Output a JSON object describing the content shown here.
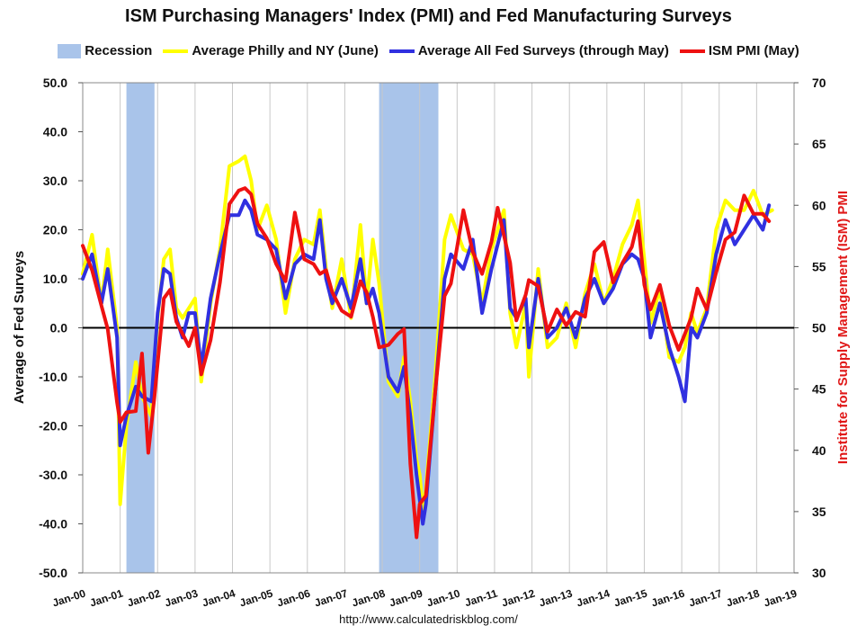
{
  "chart_data": {
    "type": "line",
    "title": "ISM Purchasing Managers' Index (PMI) and Fed Manufacturing Surveys",
    "ylabel_left": "Average of Fed Surveys",
    "ylabel_right": "Institute for Supply Management (ISM) PMI",
    "ylim_left": [
      -50,
      50
    ],
    "ylim_right": [
      30,
      70
    ],
    "yticks_left": [
      "50.0",
      "40.0",
      "30.0",
      "20.0",
      "10.0",
      "0.0",
      "-10.0",
      "-20.0",
      "-30.0",
      "-40.0",
      "-50.0"
    ],
    "yticks_right": [
      "70",
      "65",
      "60",
      "55",
      "50",
      "45",
      "40",
      "35",
      "30"
    ],
    "xlim": [
      "Jan-00",
      "Jan-19"
    ],
    "xticks": [
      "Jan-00",
      "Jan-01",
      "Jan-02",
      "Jan-03",
      "Jan-04",
      "Jan-05",
      "Jan-06",
      "Jan-07",
      "Jan-08",
      "Jan-09",
      "Jan-10",
      "Jan-11",
      "Jan-12",
      "Jan-13",
      "Jan-14",
      "Jan-15",
      "Jan-16",
      "Jan-17",
      "Jan-18",
      "Jan-19"
    ],
    "legend_position": "top",
    "grid": "vertical",
    "recessions": [
      {
        "start": "2001-03",
        "end": "2001-11"
      },
      {
        "start": "2007-12",
        "end": "2009-06"
      }
    ],
    "series": [
      {
        "name": "Average Philly and NY (June)",
        "axis": "left",
        "color": "#ffff00",
        "points": [
          [
            "2000-01",
            11
          ],
          [
            "2000-04",
            19
          ],
          [
            "2000-07",
            5
          ],
          [
            "2000-09",
            16
          ],
          [
            "2000-12",
            0
          ],
          [
            "2001-01",
            -36
          ],
          [
            "2001-03",
            -20
          ],
          [
            "2001-06",
            -7
          ],
          [
            "2001-08",
            -14
          ],
          [
            "2001-11",
            -18
          ],
          [
            "2002-01",
            2
          ],
          [
            "2002-03",
            14
          ],
          [
            "2002-05",
            16
          ],
          [
            "2002-07",
            4
          ],
          [
            "2002-09",
            2
          ],
          [
            "2002-11",
            4
          ],
          [
            "2003-01",
            6
          ],
          [
            "2003-03",
            -11
          ],
          [
            "2003-06",
            5
          ],
          [
            "2003-09",
            16
          ],
          [
            "2003-12",
            33
          ],
          [
            "2004-03",
            34
          ],
          [
            "2004-05",
            35
          ],
          [
            "2004-07",
            30
          ],
          [
            "2004-09",
            20
          ],
          [
            "2004-12",
            25
          ],
          [
            "2005-03",
            18
          ],
          [
            "2005-06",
            3
          ],
          [
            "2005-09",
            14
          ],
          [
            "2005-12",
            18
          ],
          [
            "2006-03",
            17
          ],
          [
            "2006-05",
            24
          ],
          [
            "2006-07",
            12
          ],
          [
            "2006-09",
            4
          ],
          [
            "2006-12",
            14
          ],
          [
            "2007-03",
            2
          ],
          [
            "2007-06",
            21
          ],
          [
            "2007-08",
            5
          ],
          [
            "2007-10",
            18
          ],
          [
            "2007-12",
            9
          ],
          [
            "2008-03",
            -11
          ],
          [
            "2008-06",
            -14
          ],
          [
            "2008-08",
            -6
          ],
          [
            "2008-10",
            -15
          ],
          [
            "2008-12",
            -27
          ],
          [
            "2009-01",
            -30
          ],
          [
            "2009-02",
            -37
          ],
          [
            "2009-03",
            -33
          ],
          [
            "2009-06",
            -10
          ],
          [
            "2009-09",
            18
          ],
          [
            "2009-11",
            23
          ],
          [
            "2010-03",
            16
          ],
          [
            "2010-06",
            15
          ],
          [
            "2010-09",
            5
          ],
          [
            "2010-12",
            16
          ],
          [
            "2011-04",
            24
          ],
          [
            "2011-06",
            3
          ],
          [
            "2011-08",
            -4
          ],
          [
            "2011-11",
            5
          ],
          [
            "2011-12",
            -10
          ],
          [
            "2012-03",
            12
          ],
          [
            "2012-06",
            -4
          ],
          [
            "2012-09",
            -2
          ],
          [
            "2012-12",
            5
          ],
          [
            "2013-03",
            -4
          ],
          [
            "2013-06",
            7
          ],
          [
            "2013-09",
            13
          ],
          [
            "2013-12",
            5
          ],
          [
            "2014-03",
            10
          ],
          [
            "2014-06",
            17
          ],
          [
            "2014-09",
            21
          ],
          [
            "2014-11",
            26
          ],
          [
            "2015-01",
            14
          ],
          [
            "2015-03",
            1
          ],
          [
            "2015-06",
            8
          ],
          [
            "2015-09",
            -6
          ],
          [
            "2015-12",
            -7
          ],
          [
            "2016-02",
            -4
          ],
          [
            "2016-04",
            3
          ],
          [
            "2016-06",
            -1
          ],
          [
            "2016-09",
            4
          ],
          [
            "2016-12",
            20
          ],
          [
            "2017-03",
            26
          ],
          [
            "2017-06",
            24
          ],
          [
            "2017-09",
            24
          ],
          [
            "2017-12",
            28
          ],
          [
            "2018-03",
            23
          ],
          [
            "2018-06",
            24
          ]
        ]
      },
      {
        "name": "Average All Fed Surveys (through May)",
        "axis": "left",
        "color": "#3030e0",
        "points": [
          [
            "2000-01",
            10
          ],
          [
            "2000-04",
            15
          ],
          [
            "2000-07",
            5
          ],
          [
            "2000-09",
            12
          ],
          [
            "2000-12",
            -2
          ],
          [
            "2001-01",
            -24
          ],
          [
            "2001-03",
            -18
          ],
          [
            "2001-06",
            -12
          ],
          [
            "2001-08",
            -14
          ],
          [
            "2001-11",
            -15
          ],
          [
            "2002-01",
            3
          ],
          [
            "2002-03",
            12
          ],
          [
            "2002-05",
            11
          ],
          [
            "2002-07",
            2
          ],
          [
            "2002-09",
            -2
          ],
          [
            "2002-11",
            3
          ],
          [
            "2003-01",
            3
          ],
          [
            "2003-03",
            -8
          ],
          [
            "2003-06",
            6
          ],
          [
            "2003-09",
            15
          ],
          [
            "2003-12",
            23
          ],
          [
            "2004-03",
            23
          ],
          [
            "2004-05",
            26
          ],
          [
            "2004-07",
            24
          ],
          [
            "2004-09",
            19
          ],
          [
            "2004-12",
            18
          ],
          [
            "2005-03",
            16
          ],
          [
            "2005-06",
            6
          ],
          [
            "2005-09",
            13
          ],
          [
            "2005-12",
            15
          ],
          [
            "2006-03",
            14
          ],
          [
            "2006-05",
            22
          ],
          [
            "2006-07",
            10
          ],
          [
            "2006-09",
            5
          ],
          [
            "2006-12",
            10
          ],
          [
            "2007-03",
            4
          ],
          [
            "2007-06",
            14
          ],
          [
            "2007-08",
            5
          ],
          [
            "2007-10",
            8
          ],
          [
            "2007-12",
            3
          ],
          [
            "2008-03",
            -10
          ],
          [
            "2008-06",
            -13
          ],
          [
            "2008-08",
            -8
          ],
          [
            "2008-10",
            -18
          ],
          [
            "2008-12",
            -30
          ],
          [
            "2009-01",
            -35
          ],
          [
            "2009-02",
            -40
          ],
          [
            "2009-03",
            -36
          ],
          [
            "2009-06",
            -13
          ],
          [
            "2009-09",
            10
          ],
          [
            "2009-11",
            15
          ],
          [
            "2010-03",
            12
          ],
          [
            "2010-06",
            18
          ],
          [
            "2010-09",
            3
          ],
          [
            "2010-12",
            12
          ],
          [
            "2011-04",
            22
          ],
          [
            "2011-06",
            4
          ],
          [
            "2011-08",
            2
          ],
          [
            "2011-11",
            6
          ],
          [
            "2011-12",
            -4
          ],
          [
            "2012-03",
            10
          ],
          [
            "2012-06",
            -2
          ],
          [
            "2012-09",
            0
          ],
          [
            "2012-12",
            4
          ],
          [
            "2013-03",
            -2
          ],
          [
            "2013-06",
            6
          ],
          [
            "2013-09",
            10
          ],
          [
            "2013-12",
            5
          ],
          [
            "2014-03",
            8
          ],
          [
            "2014-06",
            13
          ],
          [
            "2014-09",
            15
          ],
          [
            "2014-11",
            14
          ],
          [
            "2015-01",
            10
          ],
          [
            "2015-03",
            -2
          ],
          [
            "2015-06",
            5
          ],
          [
            "2015-09",
            -4
          ],
          [
            "2015-12",
            -10
          ],
          [
            "2016-02",
            -15
          ],
          [
            "2016-04",
            0
          ],
          [
            "2016-06",
            -2
          ],
          [
            "2016-09",
            3
          ],
          [
            "2016-12",
            15
          ],
          [
            "2017-03",
            22
          ],
          [
            "2017-06",
            17
          ],
          [
            "2017-09",
            20
          ],
          [
            "2017-12",
            23
          ],
          [
            "2018-03",
            20
          ],
          [
            "2018-05",
            25
          ]
        ]
      },
      {
        "name": "ISM PMI (May)",
        "axis": "right",
        "color": "#ee1111",
        "points": [
          [
            "2000-01",
            56.7
          ],
          [
            "2000-04",
            54.7
          ],
          [
            "2000-07",
            51.8
          ],
          [
            "2000-09",
            49.9
          ],
          [
            "2000-12",
            43.9
          ],
          [
            "2001-01",
            42.3
          ],
          [
            "2001-03",
            43.1
          ],
          [
            "2001-06",
            43.2
          ],
          [
            "2001-08",
            47.9
          ],
          [
            "2001-10",
            39.8
          ],
          [
            "2001-12",
            44.4
          ],
          [
            "2002-03",
            52.4
          ],
          [
            "2002-05",
            53.1
          ],
          [
            "2002-07",
            50.5
          ],
          [
            "2002-09",
            49.5
          ],
          [
            "2002-11",
            48.5
          ],
          [
            "2003-01",
            50.0
          ],
          [
            "2003-03",
            46.2
          ],
          [
            "2003-06",
            49.0
          ],
          [
            "2003-09",
            53.7
          ],
          [
            "2003-12",
            60.1
          ],
          [
            "2004-03",
            61.2
          ],
          [
            "2004-05",
            61.4
          ],
          [
            "2004-07",
            60.9
          ],
          [
            "2004-09",
            58.5
          ],
          [
            "2004-12",
            57.3
          ],
          [
            "2005-03",
            55.2
          ],
          [
            "2005-06",
            53.8
          ],
          [
            "2005-09",
            59.4
          ],
          [
            "2005-12",
            55.6
          ],
          [
            "2006-03",
            55.2
          ],
          [
            "2006-05",
            54.4
          ],
          [
            "2006-07",
            54.7
          ],
          [
            "2006-09",
            52.9
          ],
          [
            "2006-12",
            51.4
          ],
          [
            "2007-03",
            50.9
          ],
          [
            "2007-06",
            53.8
          ],
          [
            "2007-08",
            52.9
          ],
          [
            "2007-10",
            50.9
          ],
          [
            "2007-12",
            48.4
          ],
          [
            "2008-03",
            48.6
          ],
          [
            "2008-06",
            49.5
          ],
          [
            "2008-08",
            49.9
          ],
          [
            "2008-10",
            38.9
          ],
          [
            "2008-12",
            32.9
          ],
          [
            "2009-01",
            35.6
          ],
          [
            "2009-03",
            36.3
          ],
          [
            "2009-06",
            44.8
          ],
          [
            "2009-09",
            52.6
          ],
          [
            "2009-11",
            53.6
          ],
          [
            "2010-03",
            59.6
          ],
          [
            "2010-06",
            56.2
          ],
          [
            "2010-09",
            54.4
          ],
          [
            "2010-12",
            57.0
          ],
          [
            "2011-02",
            59.8
          ],
          [
            "2011-06",
            55.3
          ],
          [
            "2011-08",
            50.6
          ],
          [
            "2011-11",
            52.7
          ],
          [
            "2011-12",
            53.9
          ],
          [
            "2012-03",
            53.4
          ],
          [
            "2012-06",
            49.7
          ],
          [
            "2012-09",
            51.5
          ],
          [
            "2012-12",
            50.2
          ],
          [
            "2013-03",
            51.3
          ],
          [
            "2013-06",
            50.9
          ],
          [
            "2013-09",
            56.2
          ],
          [
            "2013-12",
            57.0
          ],
          [
            "2014-03",
            53.7
          ],
          [
            "2014-06",
            55.3
          ],
          [
            "2014-09",
            56.6
          ],
          [
            "2014-11",
            58.7
          ],
          [
            "2015-01",
            53.5
          ],
          [
            "2015-03",
            51.5
          ],
          [
            "2015-06",
            53.5
          ],
          [
            "2015-09",
            50.2
          ],
          [
            "2015-12",
            48.2
          ],
          [
            "2016-02",
            49.5
          ],
          [
            "2016-04",
            50.8
          ],
          [
            "2016-06",
            53.2
          ],
          [
            "2016-09",
            51.5
          ],
          [
            "2016-12",
            54.5
          ],
          [
            "2017-03",
            57.2
          ],
          [
            "2017-06",
            57.8
          ],
          [
            "2017-09",
            60.8
          ],
          [
            "2017-12",
            59.3
          ],
          [
            "2018-03",
            59.3
          ],
          [
            "2018-05",
            58.7
          ]
        ]
      }
    ]
  },
  "legend": {
    "recession_label": "Recession",
    "recession_color": "#a9c4ea"
  },
  "source": "http://www.calculatedriskblog.com/"
}
